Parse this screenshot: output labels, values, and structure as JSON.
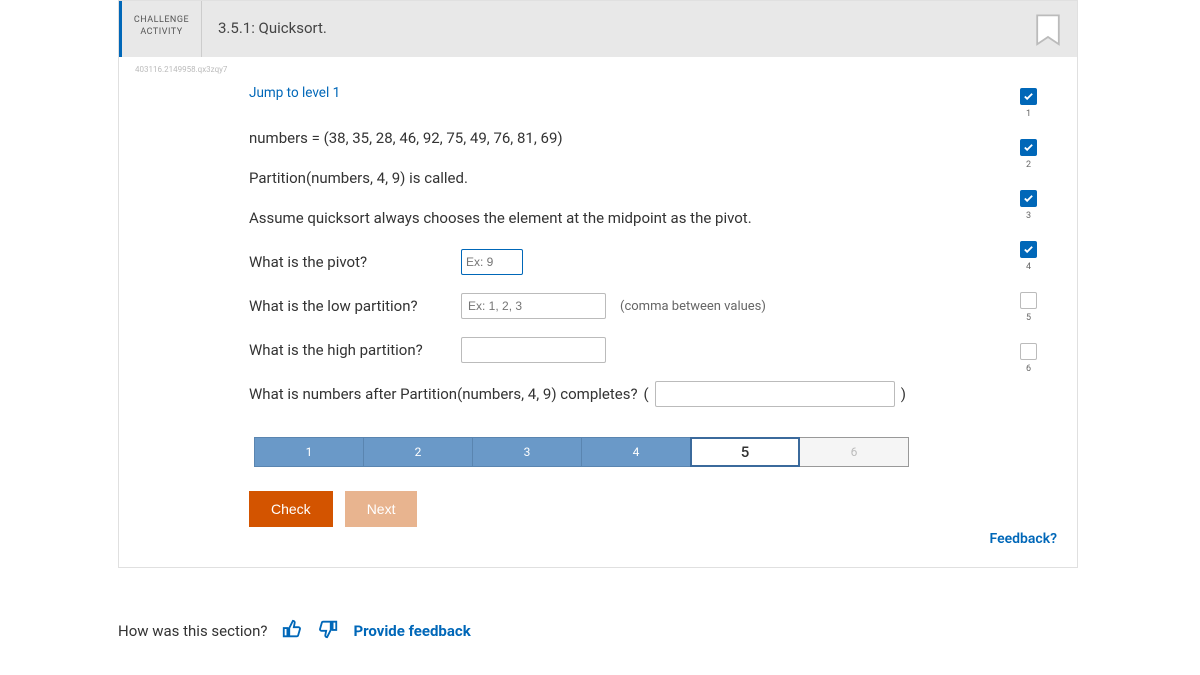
{
  "header": {
    "challenge_label_1": "CHALLENGE",
    "challenge_label_2": "ACTIVITY",
    "title": "3.5.1: Quicksort."
  },
  "tracking_id": "403116.2149958.qx3zqy7",
  "jump_link": "Jump to level 1",
  "lines": {
    "l1": "numbers = (38, 35, 28, 46, 92, 75, 49, 76, 81, 69)",
    "l2": "Partition(numbers, 4, 9) is called.",
    "l3": "Assume quicksort always chooses the element at the midpoint as the pivot."
  },
  "questions": {
    "q1": "What is the pivot?",
    "q1_placeholder": "Ex: 9",
    "q2": "What is the low partition?",
    "q2_placeholder": "Ex: 1, 2, 3",
    "q2_hint": "(comma between values)",
    "q3": "What is the high partition?",
    "q4_pre": "What is numbers after Partition(numbers, 4, 9) completes?",
    "q4_open": "(",
    "q4_close": ")"
  },
  "progress": {
    "segments": [
      {
        "label": "1",
        "state": "done"
      },
      {
        "label": "2",
        "state": "done"
      },
      {
        "label": "3",
        "state": "done"
      },
      {
        "label": "4",
        "state": "done"
      },
      {
        "label": "5",
        "state": "current"
      },
      {
        "label": "6",
        "state": "pending"
      }
    ]
  },
  "buttons": {
    "check": "Check",
    "next": "Next"
  },
  "feedback_link": "Feedback?",
  "footer": {
    "question": "How was this section?",
    "provide": "Provide feedback"
  },
  "side_checks": [
    {
      "n": "1",
      "checked": true
    },
    {
      "n": "2",
      "checked": true
    },
    {
      "n": "3",
      "checked": true
    },
    {
      "n": "4",
      "checked": true
    },
    {
      "n": "5",
      "checked": false
    },
    {
      "n": "6",
      "checked": false
    }
  ],
  "colors": {
    "accent": "#0067b8",
    "orange": "#d35400",
    "progress_done": "#6a99c8"
  }
}
